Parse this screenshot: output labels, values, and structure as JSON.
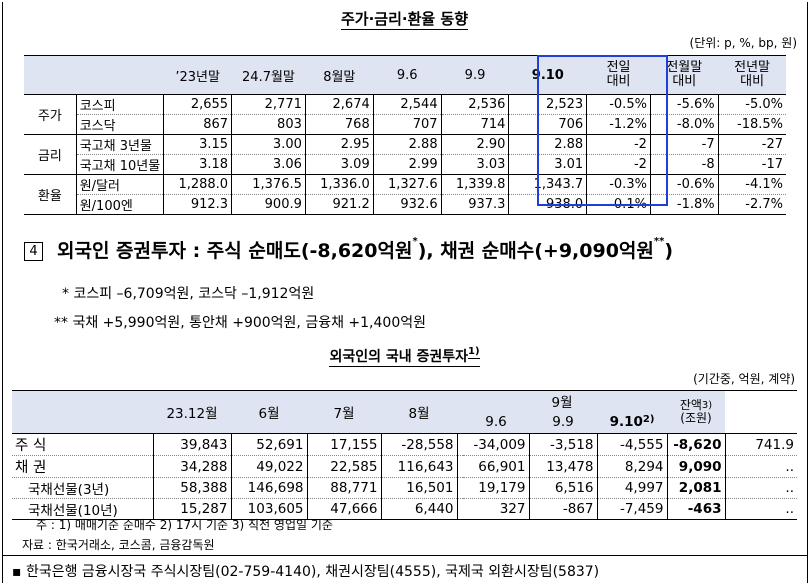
{
  "title1": "주가·금리·환율 동향",
  "unit1": "(단위: p, %, bp, 원)",
  "table1": {
    "headers": [
      "’23년말",
      "24.7월말",
      "8월말",
      "9.6",
      "9.9",
      "9.10",
      "전일\n대비",
      "전월말\n대비",
      "전년말\n대비"
    ],
    "groups": [
      "주가",
      "금리",
      "환율"
    ],
    "rows": [
      {
        "label": "코스피",
        "v": [
          "2,655",
          "2,771",
          "2,674",
          "2,544",
          "2,536",
          "2,523",
          "-0.5%",
          "-5.6%",
          "-5.0%"
        ]
      },
      {
        "label": "코스닥",
        "v": [
          "867",
          "803",
          "768",
          "707",
          "714",
          "706",
          "-1.2%",
          "-8.0%",
          "-18.5%"
        ]
      },
      {
        "label": "국고채 3년물",
        "v": [
          "3.15",
          "3.00",
          "2.95",
          "2.88",
          "2.90",
          "2.88",
          "-2",
          "-7",
          "-27"
        ]
      },
      {
        "label": "국고채 10년물",
        "v": [
          "3.18",
          "3.06",
          "3.09",
          "2.99",
          "3.03",
          "3.01",
          "-2",
          "-8",
          "-17"
        ]
      },
      {
        "label": "원/달러",
        "v": [
          "1,288.0",
          "1,376.5",
          "1,336.0",
          "1,327.6",
          "1,339.8",
          "1,343.7",
          "-0.3%",
          "-0.6%",
          "-4.1%"
        ]
      },
      {
        "label": "원/100엔",
        "v": [
          "912.3",
          "900.9",
          "921.2",
          "932.6",
          "937.3",
          "938.0",
          "-0.1%",
          "-1.8%",
          "-2.7%"
        ]
      }
    ]
  },
  "section": {
    "number": "4",
    "text_a": "외국인 증권투자 : 주식 순매도(-8,620억원",
    "sup_a": "*",
    "text_b": "), 채권 순매수(+9,090억원",
    "sup_b": "**",
    "text_c": ")"
  },
  "notes": [
    "* 코스피 –6,709억원, 코스닥 –1,912억원",
    "** 국채 +5,990억원, 통안채 +900억원, 금융채 +1,400억원"
  ],
  "title2": "외국인의 국내 증권투자",
  "title2_sup": "1)",
  "unit2": "(기간중, 억원, 계약)",
  "table2": {
    "headers": [
      "23.12월",
      "6월",
      "7월",
      "8월",
      "9월",
      "9.6",
      "9.9",
      "9.10",
      "잔액",
      "(조원)"
    ],
    "h_sup_910": "2)",
    "h_sup_bal": "3)",
    "rows": [
      {
        "label": "주  식",
        "v": [
          "39,843",
          "52,691",
          "17,155",
          "-28,558",
          "-34,009",
          "-3,518",
          "-4,555",
          "-8,620",
          "741.9"
        ]
      },
      {
        "label": "채  권",
        "v": [
          "34,288",
          "49,022",
          "22,585",
          "116,643",
          "66,901",
          "13,478",
          "8,294",
          "9,090",
          ".."
        ]
      },
      {
        "label": "국채선물(3년)",
        "v": [
          "58,388",
          "146,698",
          "88,771",
          "16,501",
          "19,179",
          "6,516",
          "4,997",
          "2,081",
          ".."
        ]
      },
      {
        "label": "국채선물(10년)",
        "v": [
          "15,287",
          "103,605",
          "47,666",
          "6,440",
          "327",
          "-867",
          "-7,459",
          "-463",
          ".."
        ]
      }
    ]
  },
  "footnotes": [
    "주 : 1) 매매기준 순매수    2) 17시 기준    3) 직전 영업일 기준",
    "자료 : 한국거래소, 코스콤, 금융감독원"
  ],
  "bottom": "▪ 한국은행 금융시장국 주식시장팀(02-759-4140), 채권시장팀(4555), 국제국 외환시장팀(5837)"
}
